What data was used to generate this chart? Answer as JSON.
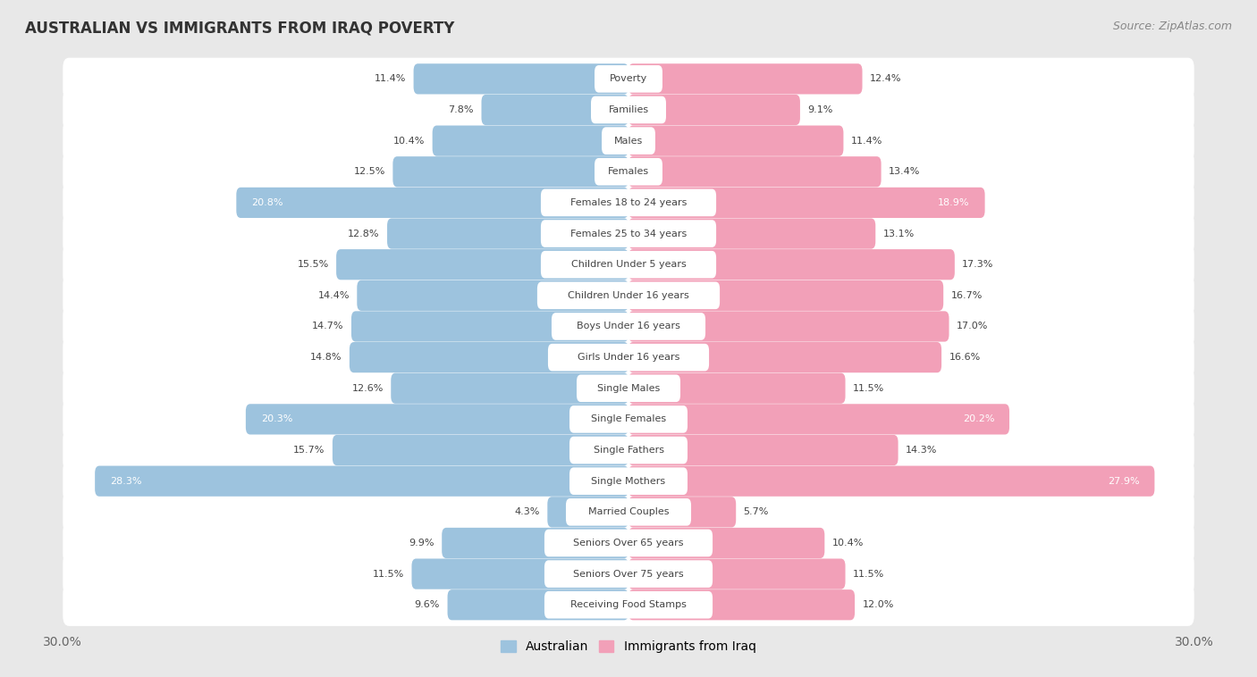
{
  "title": "AUSTRALIAN VS IMMIGRANTS FROM IRAQ POVERTY",
  "source": "Source: ZipAtlas.com",
  "categories": [
    "Poverty",
    "Families",
    "Males",
    "Females",
    "Females 18 to 24 years",
    "Females 25 to 34 years",
    "Children Under 5 years",
    "Children Under 16 years",
    "Boys Under 16 years",
    "Girls Under 16 years",
    "Single Males",
    "Single Females",
    "Single Fathers",
    "Single Mothers",
    "Married Couples",
    "Seniors Over 65 years",
    "Seniors Over 75 years",
    "Receiving Food Stamps"
  ],
  "australian": [
    11.4,
    7.8,
    10.4,
    12.5,
    20.8,
    12.8,
    15.5,
    14.4,
    14.7,
    14.8,
    12.6,
    20.3,
    15.7,
    28.3,
    4.3,
    9.9,
    11.5,
    9.6
  ],
  "iraq": [
    12.4,
    9.1,
    11.4,
    13.4,
    18.9,
    13.1,
    17.3,
    16.7,
    17.0,
    16.6,
    11.5,
    20.2,
    14.3,
    27.9,
    5.7,
    10.4,
    11.5,
    12.0
  ],
  "australian_color": "#9dc3de",
  "iraq_color": "#f2a0b8",
  "background_color": "#e8e8e8",
  "bar_background": "#ffffff",
  "row_bg_color": "#d8d8d8",
  "max_val": 30.0
}
